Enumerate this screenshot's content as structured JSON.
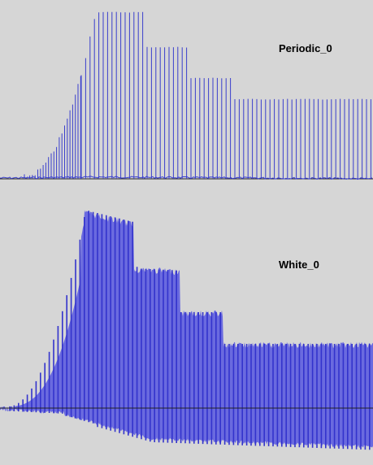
{
  "tracks": [
    {
      "label": "Periodic_0",
      "waveform_color": "#3a3fcc",
      "fill_color": "#3a3fcc",
      "baseline_color": "#222222"
    },
    {
      "label": "White_0",
      "waveform_color": "#3333cc",
      "fill_color": "#6a6adf",
      "baseline_color": "#222222"
    }
  ],
  "colors": {
    "background": "#d6d6d6"
  }
}
